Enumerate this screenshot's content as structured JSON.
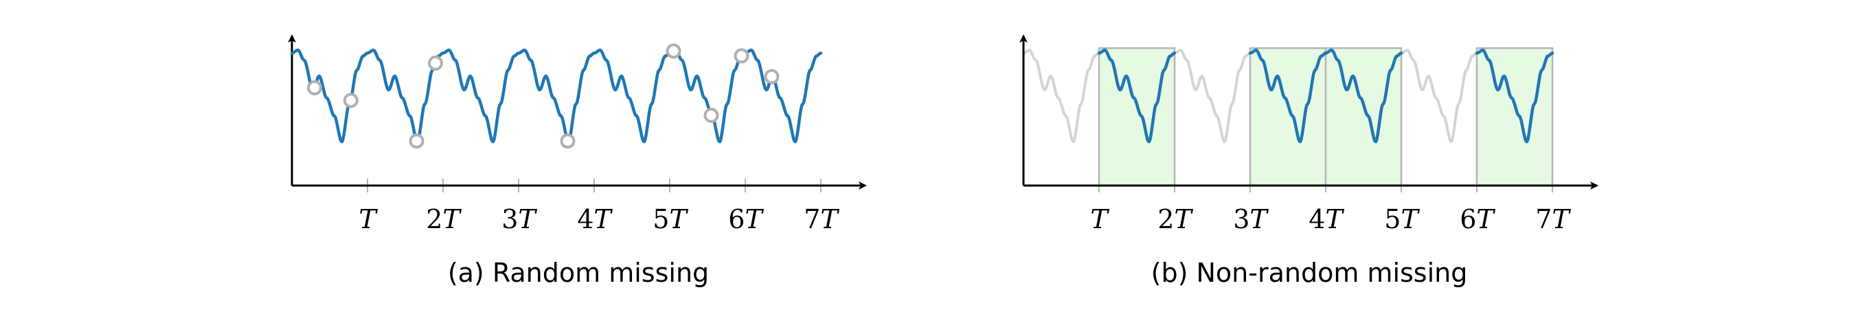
{
  "panels": [
    {
      "id": "a",
      "caption": "(a) Random missing",
      "tick_labels": [
        "T",
        "2T",
        "3T",
        "4T",
        "5T",
        "6T",
        "7T"
      ],
      "line_color": "#1f77b4",
      "missing_marker_color": "#b0b0b0",
      "missing_points_at_t": [
        0.3,
        0.78,
        1.65,
        1.9,
        3.65,
        5.05,
        5.55,
        5.95,
        6.35
      ]
    },
    {
      "id": "b",
      "caption": "(b) Non-random missing",
      "tick_labels": [
        "T",
        "2T",
        "3T",
        "4T",
        "5T",
        "6T",
        "7T"
      ],
      "line_color": "#1f77b4",
      "missing_line_color": "#d4d4d4",
      "window_fill": "#e6fae3",
      "window_stroke": "#b5b5b5",
      "observed_windows_in_T": [
        [
          1,
          2
        ],
        [
          3,
          4
        ],
        [
          4,
          5
        ],
        [
          6,
          7
        ]
      ]
    }
  ]
}
